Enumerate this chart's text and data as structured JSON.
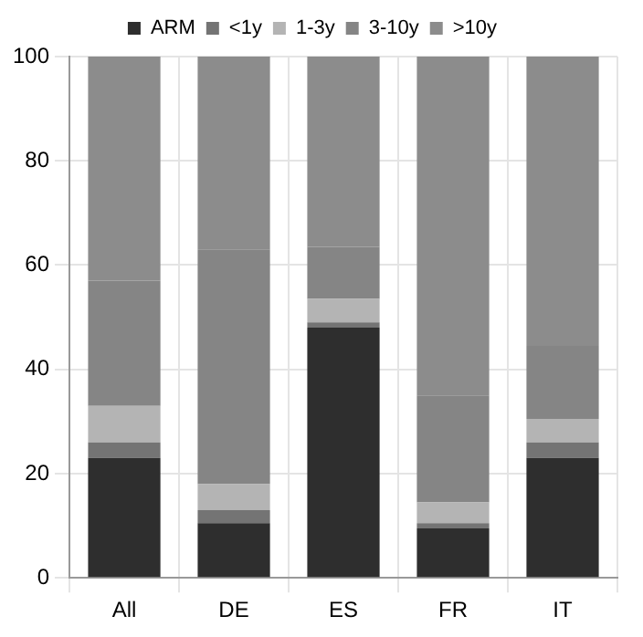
{
  "chart_data": {
    "type": "bar",
    "stacked": true,
    "categories": [
      "All",
      "DE",
      "ES",
      "FR",
      "IT"
    ],
    "series": [
      {
        "name": "ARM",
        "color": "#2e2e2e",
        "values": [
          23,
          10.5,
          48,
          9.5,
          23
        ]
      },
      {
        "name": "<1y",
        "color": "#747474",
        "values": [
          3,
          2.5,
          1,
          1,
          3
        ]
      },
      {
        "name": "1-3y",
        "color": "#b4b4b4",
        "values": [
          7,
          5,
          4.5,
          4,
          4.5
        ]
      },
      {
        "name": "3-10y",
        "color": "#858585",
        "values": [
          24,
          45,
          10,
          20.5,
          14
        ]
      },
      {
        "name": ">10y",
        "color": "#8c8c8c",
        "values": [
          43,
          37,
          36.5,
          65,
          55.5
        ]
      }
    ],
    "ylim": [
      0,
      100
    ],
    "yticks": [
      0,
      20,
      40,
      60,
      80,
      100
    ],
    "grid": true,
    "legend": "top"
  }
}
